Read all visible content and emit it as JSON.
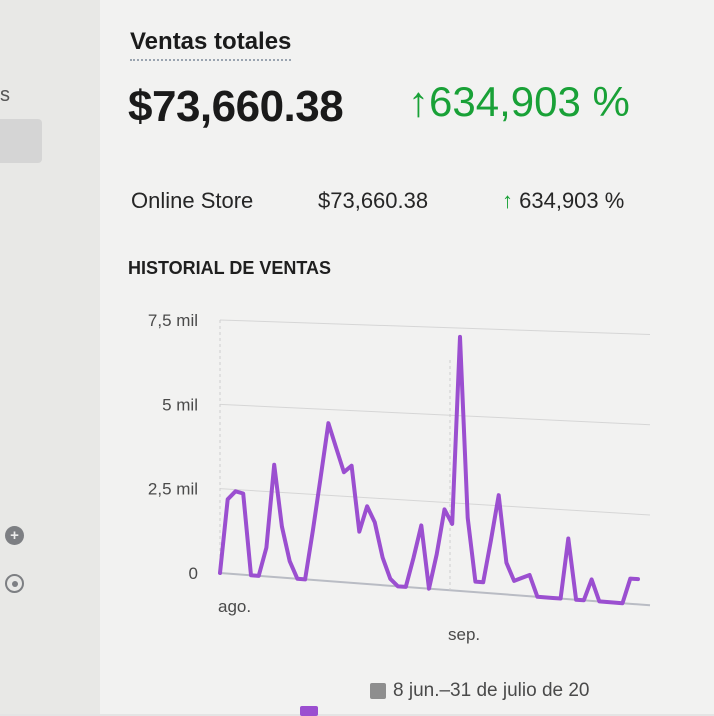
{
  "sidebar": {
    "fragment_text": "s",
    "icons": [
      "plus-circle-icon",
      "eye-icon"
    ]
  },
  "report": {
    "title": "Ventas totales",
    "total": "$73,660.38",
    "growth": "634,903 %",
    "growth_arrow": "↑",
    "accent_color": "#19a137",
    "channels": [
      {
        "name": "Online Store",
        "value": "$73,660.38",
        "growth_arrow": "↑",
        "growth": "634,903 %"
      }
    ]
  },
  "chart_data": {
    "type": "line",
    "title": "HISTORIAL DE VENTAS",
    "x_tick_labels": [
      "ago.",
      "sep."
    ],
    "y_tick_labels": [
      "0",
      "2,5 mil",
      "5 mil",
      "7,5 mil"
    ],
    "ylim": [
      0,
      7500
    ],
    "grid": true,
    "series": [
      {
        "color": "#9b4fd0",
        "values": [
          0,
          2200,
          2450,
          2400,
          0,
          0,
          850,
          3300,
          1500,
          500,
          0,
          0,
          1450,
          3000,
          4600,
          3900,
          3200,
          3400,
          1500,
          2250,
          1800,
          800,
          200,
          0,
          0,
          850,
          1800,
          0,
          1000,
          2300,
          1900,
          7250,
          2100,
          300,
          300,
          1500,
          2800,
          900,
          400,
          500,
          600,
          0,
          0,
          0,
          0,
          1700,
          0,
          0,
          600,
          0,
          0,
          0,
          0,
          700,
          700
        ]
      }
    ],
    "legend": [
      {
        "label": "8 jun.–31 de julio de 20",
        "color": "#8e8e8e"
      }
    ]
  }
}
